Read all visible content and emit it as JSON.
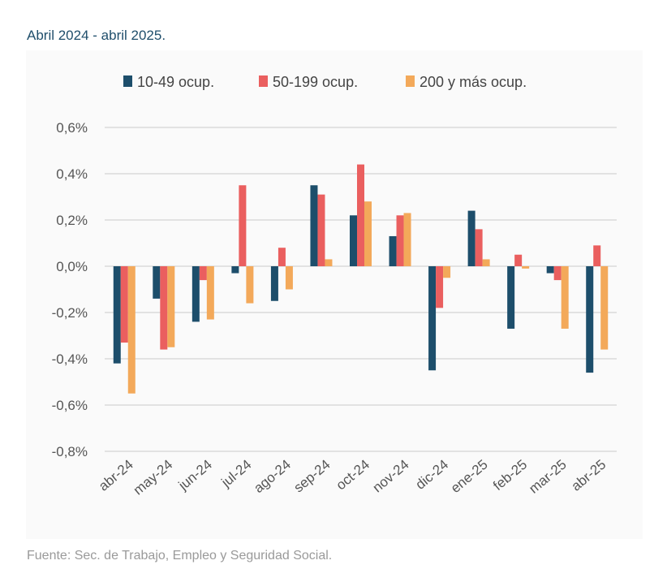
{
  "subtitle": "Abril 2024 - abril 2025.",
  "source": "Fuente: Sec. de Trabajo, Empleo y Seguridad Social.",
  "chart_data": {
    "type": "bar",
    "categories": [
      "abr-24",
      "may-24",
      "jun-24",
      "jul-24",
      "ago-24",
      "sep-24",
      "oct-24",
      "nov-24",
      "dic-24",
      "ene-25",
      "feb-25",
      "mar-25",
      "abr-25"
    ],
    "series": [
      {
        "name": "10-49 ocup.",
        "color": "#1d4e6b",
        "values": [
          -0.42,
          -0.14,
          -0.24,
          -0.03,
          -0.15,
          0.35,
          0.22,
          0.13,
          -0.45,
          0.24,
          -0.27,
          -0.03,
          -0.46
        ]
      },
      {
        "name": "50-199 ocup.",
        "color": "#ea5f5f",
        "values": [
          -0.33,
          -0.36,
          -0.06,
          0.35,
          0.08,
          0.31,
          0.44,
          0.22,
          -0.18,
          0.16,
          0.05,
          -0.06,
          0.09
        ]
      },
      {
        "name": "200 y más ocup.",
        "color": "#f3a95a",
        "values": [
          -0.55,
          -0.35,
          -0.23,
          -0.16,
          -0.1,
          0.03,
          0.28,
          0.23,
          -0.05,
          0.03,
          -0.01,
          -0.27,
          -0.36
        ]
      }
    ],
    "yticks": [
      "0,6%",
      "0,4%",
      "0,2%",
      "0,0%",
      "-0,2%",
      "-0,4%",
      "-0,6%",
      "-0,8%"
    ],
    "ylim": [
      -0.8,
      0.6
    ],
    "grid": true,
    "legend": "top"
  }
}
